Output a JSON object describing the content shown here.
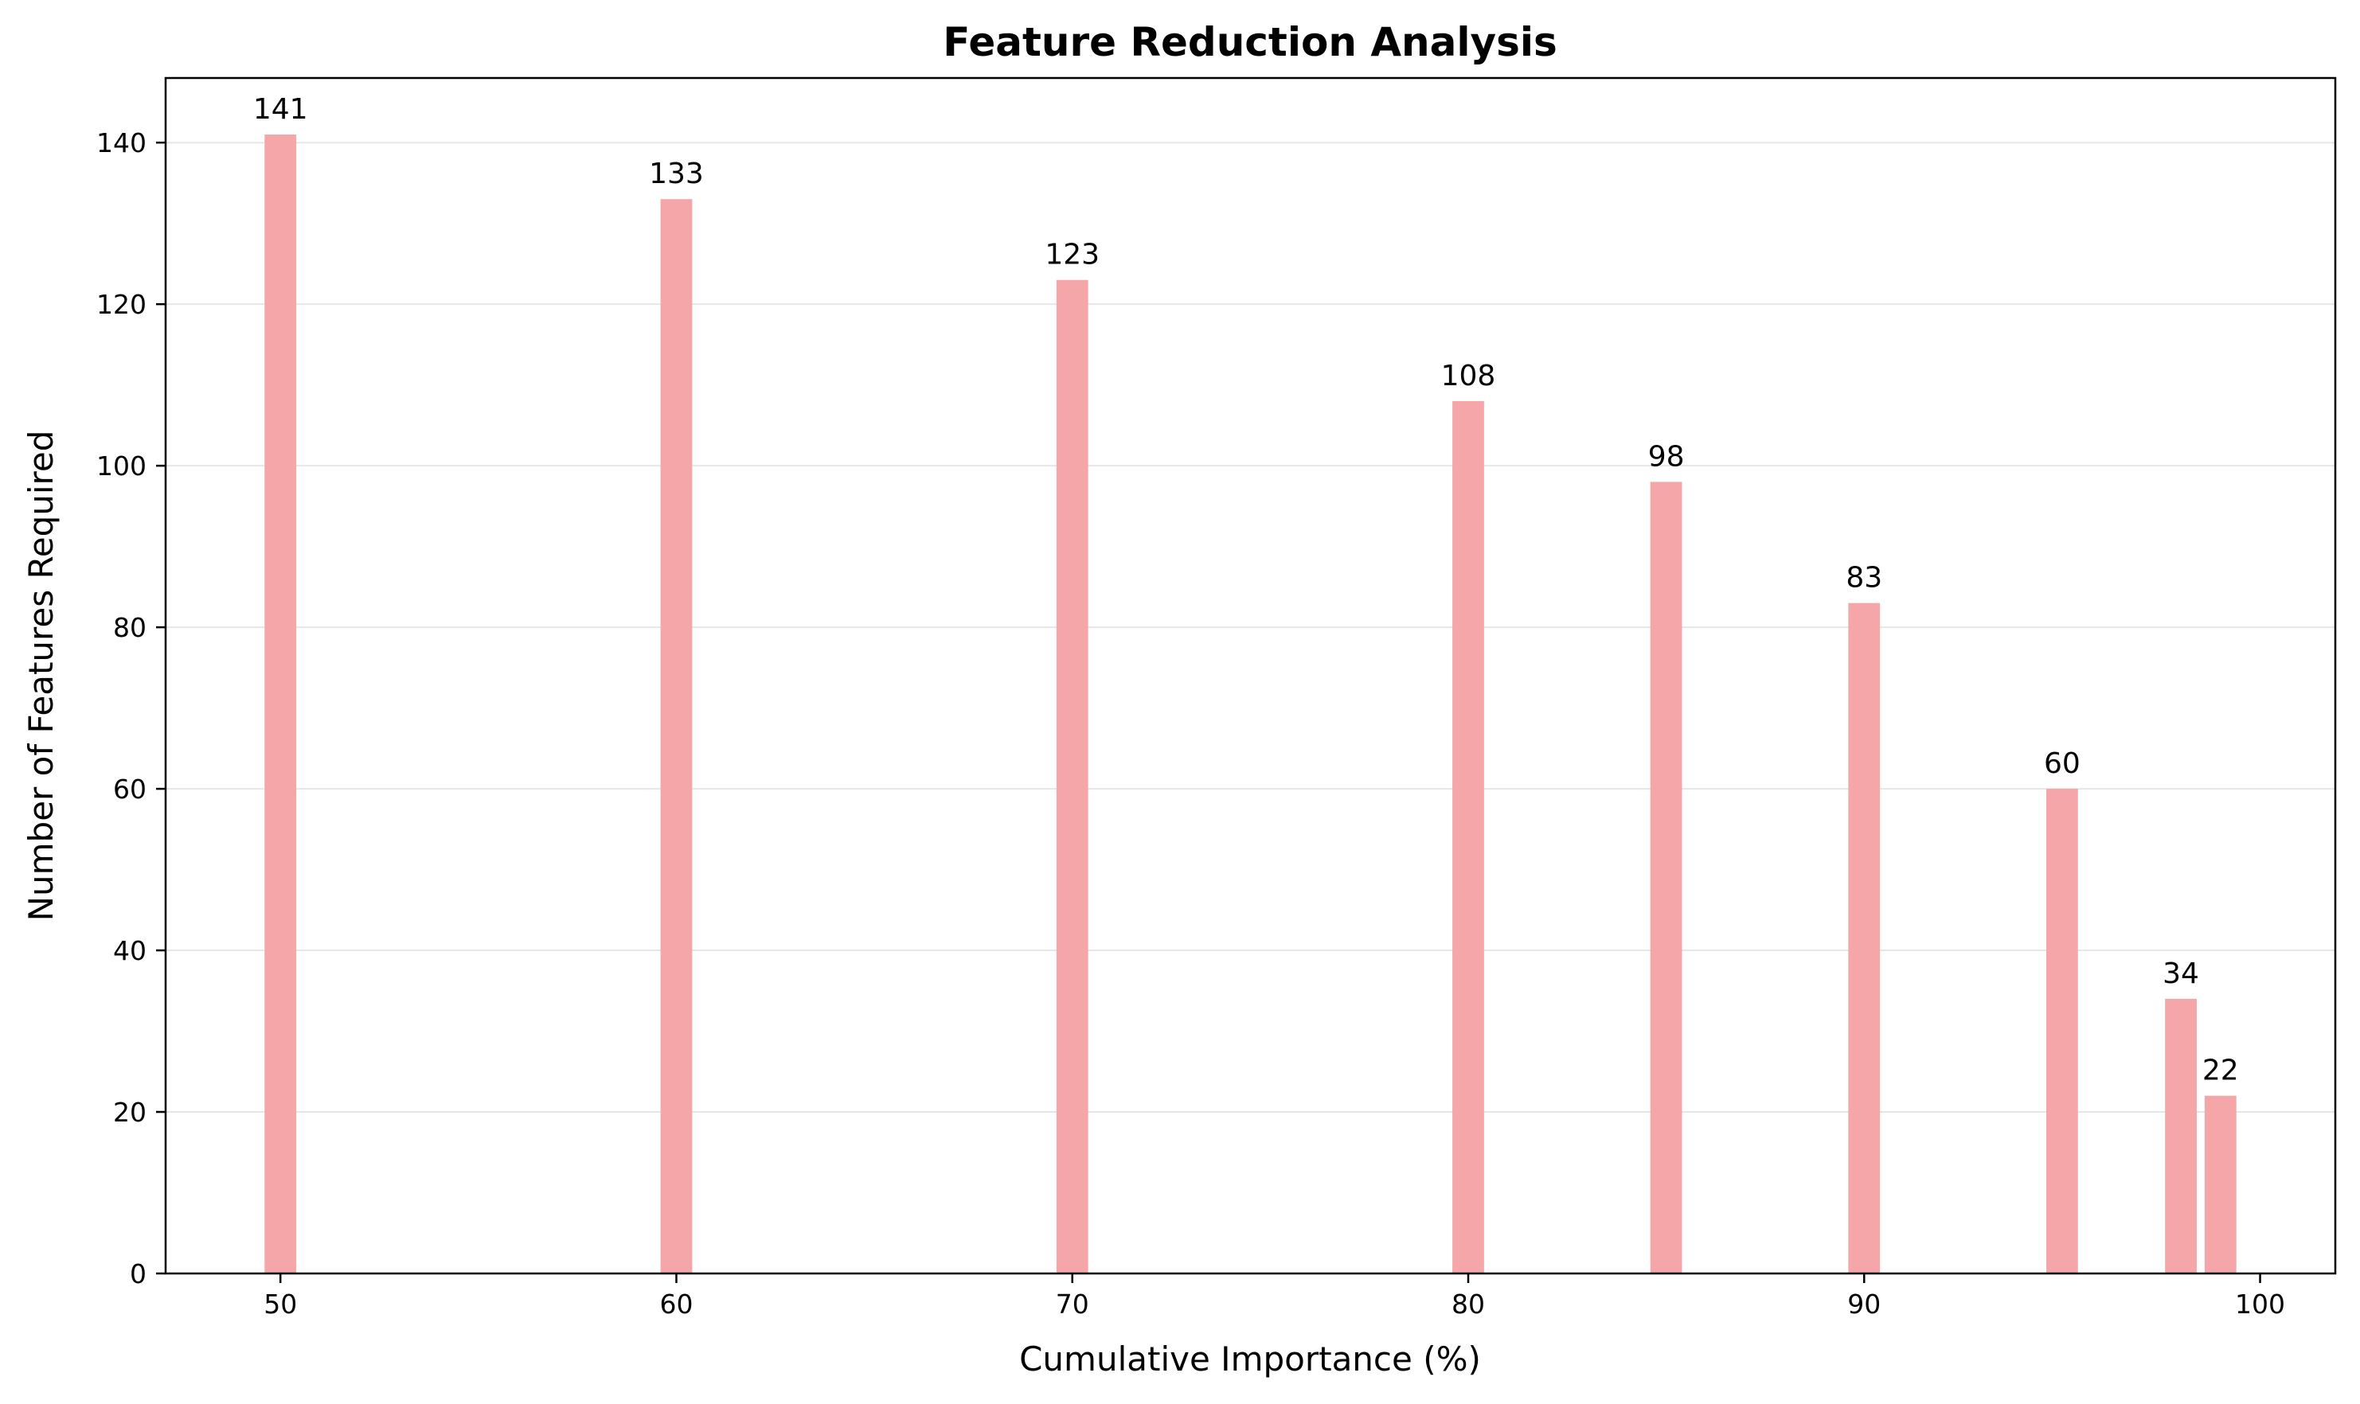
{
  "chart_data": {
    "type": "bar",
    "title": "Feature Reduction Analysis",
    "xlabel": "Cumulative Importance (%)",
    "ylabel": "Number of Features Required",
    "x": [
      50,
      60,
      70,
      80,
      85,
      90,
      95,
      98,
      99
    ],
    "values": [
      141,
      133,
      123,
      108,
      98,
      83,
      60,
      34,
      22
    ],
    "data_labels": [
      "141",
      "133",
      "123",
      "108",
      "98",
      "83",
      "60",
      "34",
      "22"
    ],
    "bar_width": 0.8,
    "xlim": [
      47.1,
      101.9
    ],
    "ylim": [
      0,
      148
    ],
    "xticks": [
      50,
      60,
      70,
      80,
      90,
      100
    ],
    "yticks": [
      0,
      20,
      40,
      60,
      80,
      100,
      120,
      140
    ],
    "grid": "y",
    "bar_color": "#f4a6a8",
    "grid_color": "#e6e6e6"
  }
}
